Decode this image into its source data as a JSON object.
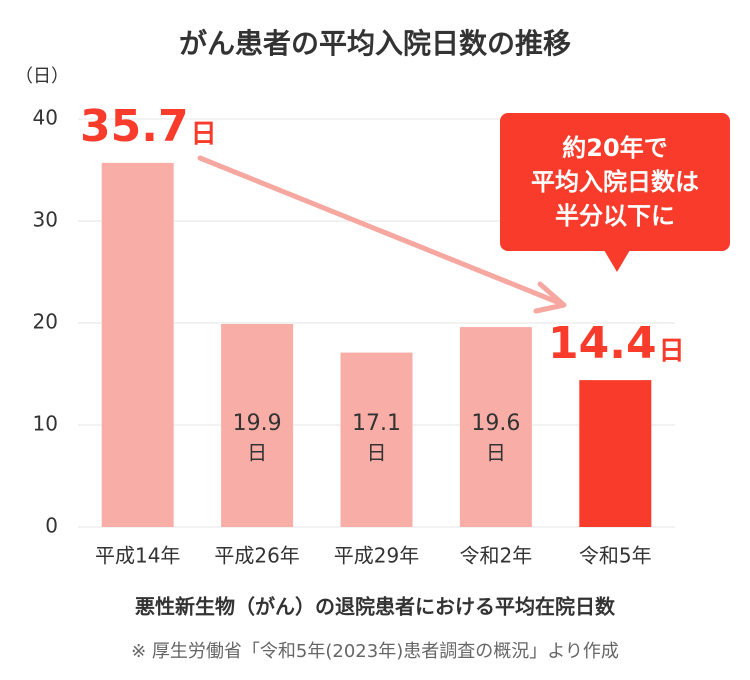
{
  "chart_data": {
    "type": "bar",
    "title": "がん患者の平均入院日数の推移",
    "y_unit_label": "（日）",
    "categories": [
      "平成14年",
      "平成26年",
      "平成29年",
      "令和2年",
      "令和5年"
    ],
    "values": [
      35.7,
      19.9,
      17.1,
      19.6,
      14.4
    ],
    "value_unit": "日",
    "colors": [
      "#f8aea6",
      "#f8aea6",
      "#f8aea6",
      "#f8aea6",
      "#f93b2b"
    ],
    "ylim": [
      0,
      40
    ],
    "yticks": [
      0,
      10,
      20,
      30,
      40
    ],
    "grid": true,
    "x_axis_title": "悪性新生物（がん）の退院患者における平均在院日数",
    "callout": [
      "約20年で",
      "平均入院日数は",
      "半分以下に"
    ],
    "source": "※ 厚生労働省「令和5年(2023年)患者調査の概況」より作成"
  }
}
